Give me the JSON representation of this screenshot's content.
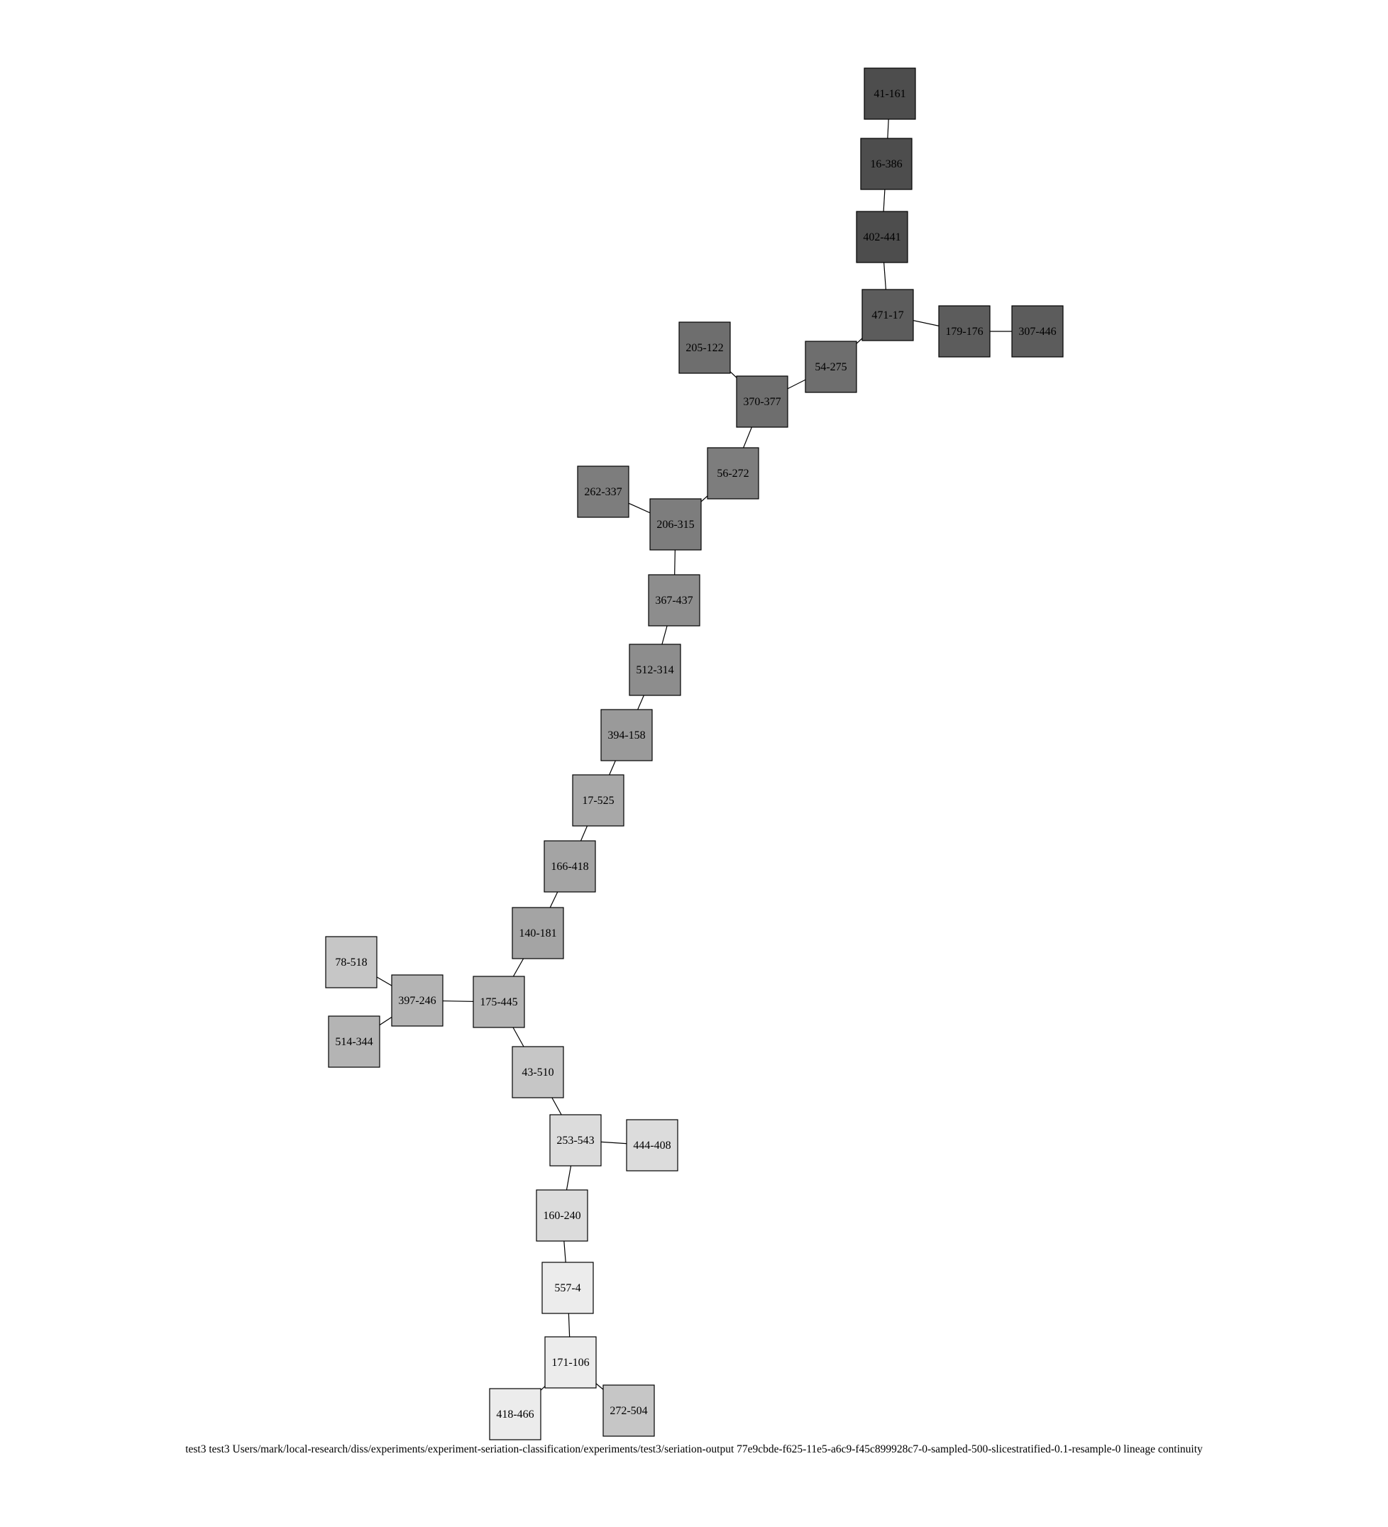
{
  "diagram": {
    "nodes": [
      {
        "id": "41-161",
        "fill": "#4d4d4d"
      },
      {
        "id": "16-386",
        "fill": "#4d4d4d"
      },
      {
        "id": "402-441",
        "fill": "#4d4d4d"
      },
      {
        "id": "471-17",
        "fill": "#5c5c5c"
      },
      {
        "id": "179-176",
        "fill": "#5c5c5c"
      },
      {
        "id": "307-446",
        "fill": "#5c5c5c"
      },
      {
        "id": "54-275",
        "fill": "#6e6e6e"
      },
      {
        "id": "205-122",
        "fill": "#6e6e6e"
      },
      {
        "id": "370-377",
        "fill": "#6e6e6e"
      },
      {
        "id": "56-272",
        "fill": "#7d7d7d"
      },
      {
        "id": "262-337",
        "fill": "#7d7d7d"
      },
      {
        "id": "206-315",
        "fill": "#7d7d7d"
      },
      {
        "id": "367-437",
        "fill": "#8d8d8d"
      },
      {
        "id": "512-314",
        "fill": "#8d8d8d"
      },
      {
        "id": "394-158",
        "fill": "#9a9a9a"
      },
      {
        "id": "17-525",
        "fill": "#a8a8a8"
      },
      {
        "id": "166-418",
        "fill": "#a4a4a4"
      },
      {
        "id": "140-181",
        "fill": "#a4a4a4"
      },
      {
        "id": "78-518",
        "fill": "#c6c6c6"
      },
      {
        "id": "397-246",
        "fill": "#b4b4b4"
      },
      {
        "id": "175-445",
        "fill": "#b4b4b4"
      },
      {
        "id": "514-344",
        "fill": "#b4b4b4"
      },
      {
        "id": "43-510",
        "fill": "#c6c6c6"
      },
      {
        "id": "253-543",
        "fill": "#dcdcdc"
      },
      {
        "id": "444-408",
        "fill": "#dcdcdc"
      },
      {
        "id": "160-240",
        "fill": "#dcdcdc"
      },
      {
        "id": "557-4",
        "fill": "#ececec"
      },
      {
        "id": "171-106",
        "fill": "#ececec"
      },
      {
        "id": "418-466",
        "fill": "#ececec"
      },
      {
        "id": "272-504",
        "fill": "#c6c6c6"
      }
    ],
    "edges": [
      [
        "41-161",
        "16-386"
      ],
      [
        "16-386",
        "402-441"
      ],
      [
        "402-441",
        "471-17"
      ],
      [
        "471-17",
        "179-176"
      ],
      [
        "179-176",
        "307-446"
      ],
      [
        "471-17",
        "54-275"
      ],
      [
        "54-275",
        "370-377"
      ],
      [
        "205-122",
        "370-377"
      ],
      [
        "370-377",
        "56-272"
      ],
      [
        "56-272",
        "206-315"
      ],
      [
        "262-337",
        "206-315"
      ],
      [
        "206-315",
        "367-437"
      ],
      [
        "367-437",
        "512-314"
      ],
      [
        "512-314",
        "394-158"
      ],
      [
        "394-158",
        "17-525"
      ],
      [
        "17-525",
        "166-418"
      ],
      [
        "166-418",
        "140-181"
      ],
      [
        "140-181",
        "175-445"
      ],
      [
        "175-445",
        "397-246"
      ],
      [
        "397-246",
        "78-518"
      ],
      [
        "397-246",
        "514-344"
      ],
      [
        "175-445",
        "43-510"
      ],
      [
        "43-510",
        "253-543"
      ],
      [
        "253-543",
        "444-408"
      ],
      [
        "253-543",
        "160-240"
      ],
      [
        "160-240",
        "557-4"
      ],
      [
        "557-4",
        "171-106"
      ],
      [
        "171-106",
        "418-466"
      ],
      [
        "171-106",
        "272-504"
      ]
    ],
    "caption": "test3  test3 Users/mark/local-research/diss/experiments/experiment-seriation-classification/experiments/test3/seriation-output  77e9cbde-f625-11e5-a6c9-f45c899928c7-0-sampled-500-slicestratified-0.1-resample-0  lineage  continuity"
  }
}
